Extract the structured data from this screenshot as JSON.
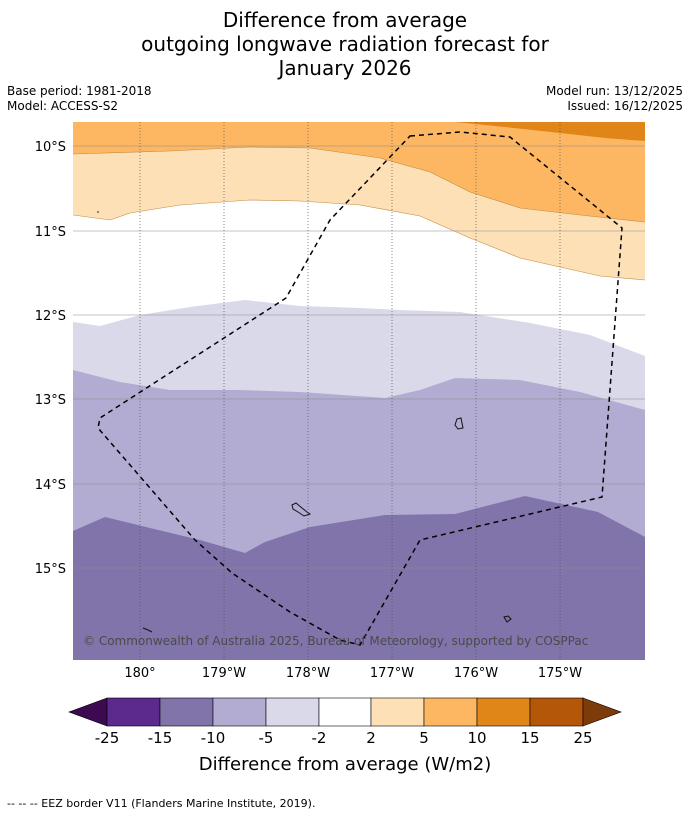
{
  "title": {
    "line1": "Difference from average",
    "line2": "outgoing longwave radiation forecast for",
    "line3": "January 2026"
  },
  "meta": {
    "base_period": "Base period: 1981-2018",
    "model": "Model: ACCESS-S2",
    "model_run": "Model run: 13/12/2025",
    "issued": "Issued: 16/12/2025"
  },
  "map": {
    "lat_labels": [
      "10°S",
      "11°S",
      "12°S",
      "13°S",
      "14°S",
      "15°S"
    ],
    "lon_labels": [
      "180°",
      "179°W",
      "178°W",
      "177°W",
      "176°W",
      "175°W"
    ],
    "copyright": "© Commonwealth of Australia 2025, Bureau of Meteorology, supported by COSPPac"
  },
  "colorbar": {
    "ticks": [
      "-25",
      "-15",
      "-10",
      "-5",
      "-2",
      "2",
      "5",
      "10",
      "15",
      "25"
    ],
    "title": "Difference from average (W/m2)",
    "colors": {
      "lt_minus25": "#3d0a52",
      "minus25_minus15": "#5b2a8c",
      "minus15_minus10": "#8074ab",
      "minus10_minus5": "#b2acd2",
      "minus5_minus2": "#d9d9ea",
      "minus2_2": "#ffffff",
      "2_5": "#fde0b6",
      "5_10": "#fdb763",
      "10_15": "#e08517",
      "15_25": "#b45709",
      "gt_25": "#7e3b0a"
    }
  },
  "footnote": "--  --  -- EEZ border V11 (Flanders Marine Institute, 2019)."
}
